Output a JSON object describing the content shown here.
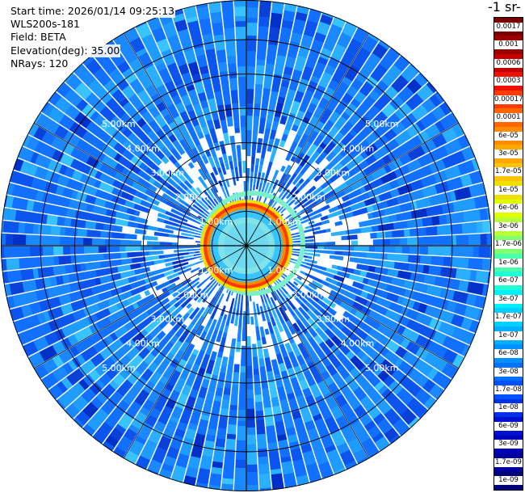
{
  "info": {
    "start_time": "Start time: 2026/01/14 09:25:13",
    "instrument": "WLS200s-181",
    "field": "Field: BETA",
    "elevation": "Elevation(deg): 35.00",
    "nrays": "NRays: 120"
  },
  "colorbar": {
    "title": "-1 sr-",
    "labels": [
      "0.0017",
      "0.001",
      "0.0006",
      "0.0003",
      "0.00017",
      "0.0001",
      "6e-05",
      "3e-05",
      "1.7e-05",
      "1e-05",
      "6e-06",
      "3e-06",
      "1.7e-06",
      "1e-06",
      "6e-07",
      "3e-07",
      "1.7e-07",
      "1e-07",
      "6e-08",
      "3e-08",
      "1.7e-08",
      "1e-08",
      "6e-09",
      "3e-09",
      "1.7e-09",
      "1e-09"
    ],
    "colors": [
      "#7a0000",
      "#9a0000",
      "#c40000",
      "#ee1000",
      "#ff3b00",
      "#ff6600",
      "#ff8c00",
      "#ffa800",
      "#ffc400",
      "#f0e000",
      "#e0ff00",
      "#b8ff38",
      "#80ff70",
      "#48ffaa",
      "#20ffd8",
      "#00f0f8",
      "#00d0ff",
      "#00b0ff",
      "#0090ff",
      "#0070ff",
      "#0050ff",
      "#0030e8",
      "#0010d0",
      "#0000b8",
      "#00009a",
      "#000078"
    ]
  },
  "range_labels": [
    "1.00km",
    "2.00km",
    "3.00km",
    "4.00km",
    "5.00km"
  ],
  "ppi": {
    "nrays": 120,
    "max_range_km": 6.0
  }
}
